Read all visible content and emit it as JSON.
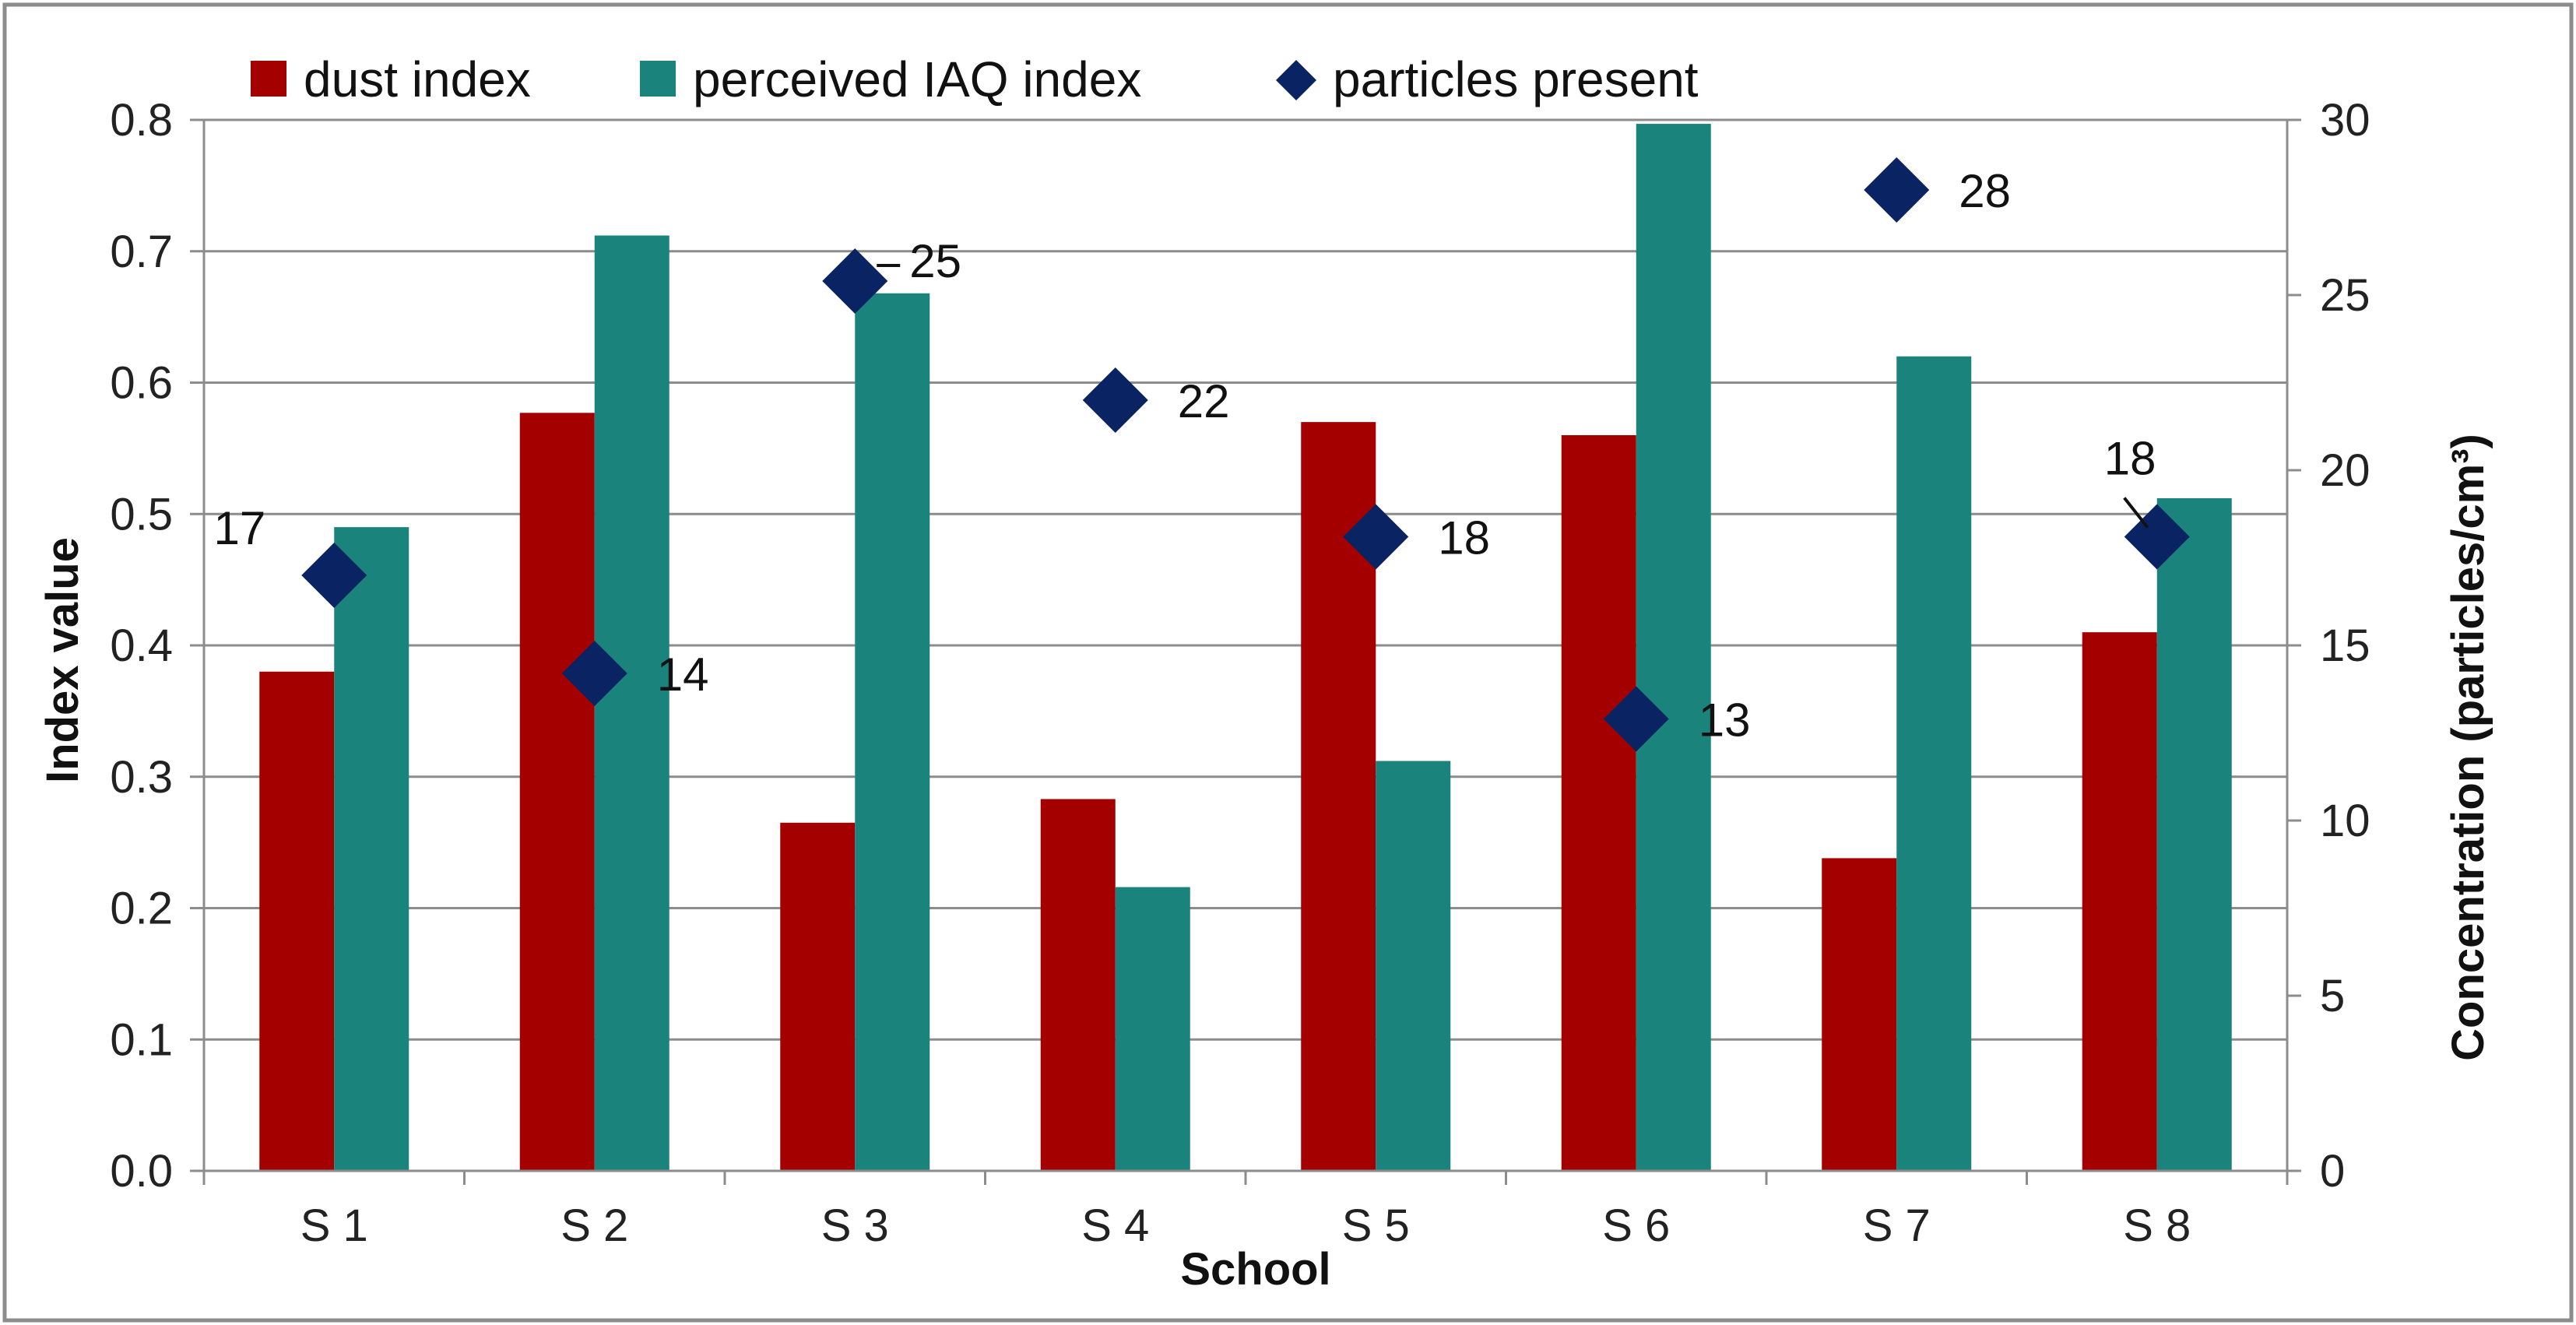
{
  "chart_data": {
    "type": "bar",
    "categories": [
      "S 1",
      "S 2",
      "S 3",
      "S 4",
      "S 5",
      "S 6",
      "S 7",
      "S 8"
    ],
    "series": [
      {
        "name": "dust index",
        "kind": "bar",
        "axis": "left",
        "color": "#A50000",
        "values": [
          0.38,
          0.577,
          0.265,
          0.283,
          0.57,
          0.56,
          0.238,
          0.41
        ]
      },
      {
        "name": "perceived IAQ index",
        "kind": "bar",
        "axis": "left",
        "color": "#1A837C",
        "values": [
          0.49,
          0.712,
          0.668,
          0.216,
          0.312,
          0.797,
          0.62,
          0.512
        ]
      },
      {
        "name": "particles present",
        "kind": "scatter",
        "marker": "diamond",
        "axis": "right",
        "color": "#0A2463",
        "values": [
          17,
          14,
          25,
          22,
          18,
          13,
          28,
          18
        ],
        "plot_values": [
          17.0,
          14.2,
          25.4,
          22.0,
          18.1,
          12.9,
          28.0,
          18.1
        ],
        "labels": [
          "17",
          "14",
          "25",
          "22",
          "18",
          "13",
          "28",
          "18"
        ]
      }
    ],
    "xlabel": "School",
    "ylabel": "Index value",
    "y2label": "Concentration (particles/cm³)",
    "ylim": [
      0,
      0.8
    ],
    "y2lim": [
      0,
      30
    ],
    "yticks": [
      "0.0",
      "0.1",
      "0.2",
      "0.3",
      "0.4",
      "0.5",
      "0.6",
      "0.7",
      "0.8"
    ],
    "y2ticks": [
      "0",
      "5",
      "10",
      "15",
      "20",
      "25",
      "30"
    ],
    "grid": true,
    "legend_position": "top"
  }
}
